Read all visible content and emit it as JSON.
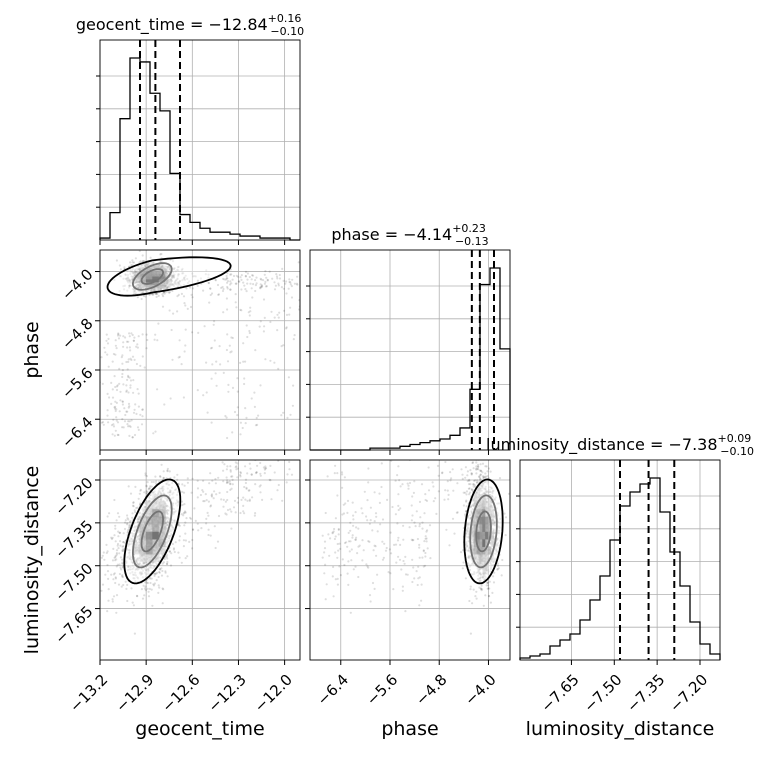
{
  "chart_data": {
    "type": "corner",
    "parameters": [
      "geocent_time",
      "phase",
      "luminosity_distance"
    ],
    "titles": [
      {
        "name": "geocent_time",
        "median": "−12.84",
        "plus": "+0.16",
        "minus": "−0.10"
      },
      {
        "name": "phase",
        "median": "−4.14",
        "plus": "+0.23",
        "minus": "−0.13"
      },
      {
        "name": "luminosity_distance",
        "median": "−7.38",
        "plus": "+0.09",
        "minus": "−0.10"
      }
    ],
    "axes": {
      "geocent_time": {
        "range": [
          -13.2,
          -11.9
        ],
        "ticks": [
          -13.2,
          -12.9,
          -12.6,
          -12.3,
          -12.0
        ],
        "tick_labels": [
          "−13.2",
          "−12.9",
          "−12.6",
          "−12.3",
          "−12.0"
        ],
        "quantiles": [
          -12.94,
          -12.84,
          -12.68
        ]
      },
      "phase": {
        "range": [
          -6.9,
          -3.65
        ],
        "ticks": [
          -6.4,
          -5.6,
          -4.8,
          -4.0
        ],
        "tick_labels": [
          "−6.4",
          "−5.6",
          "−4.8",
          "−4.0"
        ],
        "quantiles": [
          -4.27,
          -4.14,
          -3.91
        ]
      },
      "luminosity_distance": {
        "range": [
          -7.83,
          -7.13
        ],
        "ticks": [
          -7.65,
          -7.5,
          -7.35,
          -7.2
        ],
        "tick_labels": [
          "−7.65",
          "−7.50",
          "−7.35",
          "−7.20"
        ],
        "quantiles": [
          -7.48,
          -7.38,
          -7.29
        ]
      }
    },
    "histograms": {
      "geocent_time": {
        "bin_edges": [
          -13.2,
          -13.135,
          -13.07,
          -13.005,
          -12.94,
          -12.875,
          -12.81,
          -12.745,
          -12.68,
          -12.615,
          -12.55,
          -12.485,
          -12.42,
          -12.355,
          -12.29,
          -12.225,
          -12.16,
          -12.095,
          -12.03,
          -11.965,
          -11.9
        ],
        "counts": [
          0.01,
          0.14,
          0.62,
          0.93,
          0.91,
          0.75,
          0.66,
          0.34,
          0.13,
          0.09,
          0.06,
          0.04,
          0.04,
          0.03,
          0.02,
          0.02,
          0.01,
          0.01,
          0.01,
          0.0
        ]
      },
      "phase": {
        "bin_edges": [
          -6.9,
          -6.7375,
          -6.575,
          -6.4125,
          -6.25,
          -6.0875,
          -5.925,
          -5.7625,
          -5.6,
          -5.4375,
          -5.275,
          -5.1125,
          -4.95,
          -4.7875,
          -4.625,
          -4.4625,
          -4.3,
          -4.1375,
          -3.975,
          -3.8125,
          -3.65
        ],
        "counts": [
          0.0,
          0.0,
          0.0,
          0.0,
          0.0,
          0.0,
          0.01,
          0.01,
          0.01,
          0.02,
          0.03,
          0.04,
          0.05,
          0.06,
          0.08,
          0.12,
          0.33,
          0.9,
          0.99,
          0.55
        ]
      },
      "luminosity_distance": {
        "bin_edges": [
          -7.83,
          -7.795,
          -7.76,
          -7.725,
          -7.69,
          -7.655,
          -7.62,
          -7.585,
          -7.55,
          -7.515,
          -7.48,
          -7.445,
          -7.41,
          -7.375,
          -7.34,
          -7.305,
          -7.27,
          -7.235,
          -7.2,
          -7.165,
          -7.13
        ],
        "counts": [
          0.01,
          0.02,
          0.03,
          0.07,
          0.1,
          0.13,
          0.2,
          0.3,
          0.42,
          0.6,
          0.77,
          0.84,
          0.88,
          0.91,
          0.74,
          0.54,
          0.37,
          0.19,
          0.08,
          0.03
        ]
      }
    },
    "grid": true,
    "scatter_points": 2200
  }
}
